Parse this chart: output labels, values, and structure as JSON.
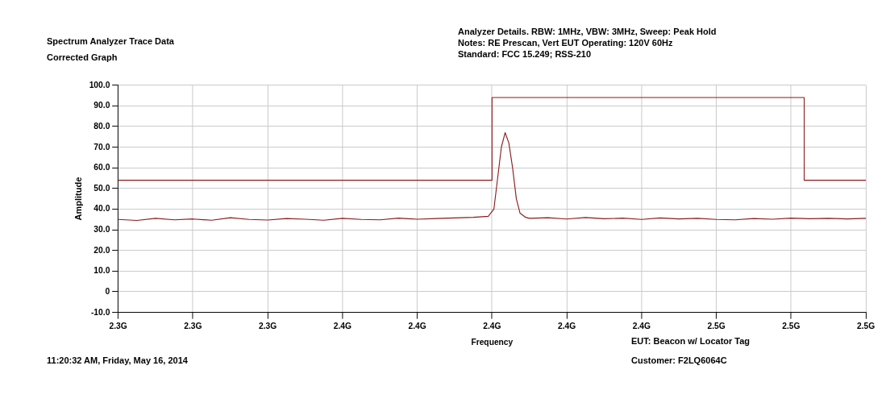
{
  "chart_data": {
    "type": "line",
    "title": "Spectrum Analyzer Trace Data",
    "subtitle": "Corrected Graph",
    "xlabel": "Frequency",
    "ylabel": "Amplitude",
    "annotations": [
      "Analyzer Details.  RBW: 1MHz, VBW: 3MHz, Sweep: Peak Hold",
      "Notes:  RE Prescan, Vert EUT Operating: 120V 60Hz",
      "Standard: FCC 15.249; RSS-210",
      "11:20:32 AM, Friday, May 16, 2014",
      "EUT: Beacon w/ Locator Tag",
      "Customer: F2LQ6064C"
    ],
    "series": [
      {
        "color": "#8b1a1a",
        "x": [
          2.3,
          2.4,
          2.4,
          2.4835,
          2.4835,
          2.5
        ],
        "values": [
          54,
          54,
          94,
          94,
          54,
          54
        ]
      },
      {
        "color": "#8b1a1a",
        "x": [
          2.3,
          2.305,
          2.31,
          2.315,
          2.32,
          2.325,
          2.33,
          2.335,
          2.34,
          2.345,
          2.35,
          2.355,
          2.36,
          2.365,
          2.37,
          2.375,
          2.38,
          2.385,
          2.39,
          2.395,
          2.399,
          2.4005,
          2.4015,
          2.4025,
          2.4035,
          2.4045,
          2.4055,
          2.4065,
          2.4075,
          2.409,
          2.41,
          2.415,
          2.42,
          2.425,
          2.43,
          2.435,
          2.44,
          2.445,
          2.45,
          2.455,
          2.46,
          2.465,
          2.47,
          2.475,
          2.48,
          2.485,
          2.49,
          2.495,
          2.5
        ],
        "values": [
          35,
          34.5,
          35.5,
          34.8,
          35.2,
          34.6,
          35.8,
          35,
          34.7,
          35.4,
          35.1,
          34.6,
          35.5,
          35,
          34.8,
          35.6,
          35.1,
          35.4,
          35.7,
          36,
          36.5,
          40,
          55,
          70,
          77,
          72,
          60,
          45,
          38,
          36,
          35.5,
          35.8,
          35.2,
          35.9,
          35.3,
          35.6,
          35,
          35.7,
          35.2,
          35.5,
          35,
          34.8,
          35.4,
          35.1,
          35.6,
          35.3,
          35.5,
          35.2,
          35.5
        ]
      }
    ],
    "xlim": [
      2.3,
      2.5
    ],
    "xticks": [
      {
        "value": 2.3,
        "label": "2.3G"
      },
      {
        "value": 2.32,
        "label": "2.3G"
      },
      {
        "value": 2.34,
        "label": "2.3G"
      },
      {
        "value": 2.36,
        "label": "2.4G"
      },
      {
        "value": 2.38,
        "label": "2.4G"
      },
      {
        "value": 2.4,
        "label": "2.4G"
      },
      {
        "value": 2.42,
        "label": "2.4G"
      },
      {
        "value": 2.44,
        "label": "2.4G"
      },
      {
        "value": 2.46,
        "label": "2.5G"
      },
      {
        "value": 2.48,
        "label": "2.5G"
      },
      {
        "value": 2.5,
        "label": "2.5G"
      }
    ],
    "ylim": [
      -10,
      100
    ],
    "yticks": [
      {
        "value": -10,
        "label": "-10.0"
      },
      0,
      {
        "value": 10,
        "label": "10.0"
      },
      {
        "value": 20,
        "label": "20.0"
      },
      {
        "value": 30,
        "label": "30.0"
      },
      {
        "value": 40,
        "label": "40.0"
      },
      {
        "value": 50,
        "label": "50.0"
      },
      {
        "value": 60,
        "label": "60.0"
      },
      {
        "value": 70,
        "label": "70.0"
      },
      {
        "value": 80,
        "label": "80.0"
      },
      {
        "value": 90,
        "label": "90.0"
      },
      {
        "value": 100,
        "label": "100.0"
      }
    ],
    "grid": true,
    "legend": false,
    "marker": "none",
    "line_style": "solid"
  }
}
